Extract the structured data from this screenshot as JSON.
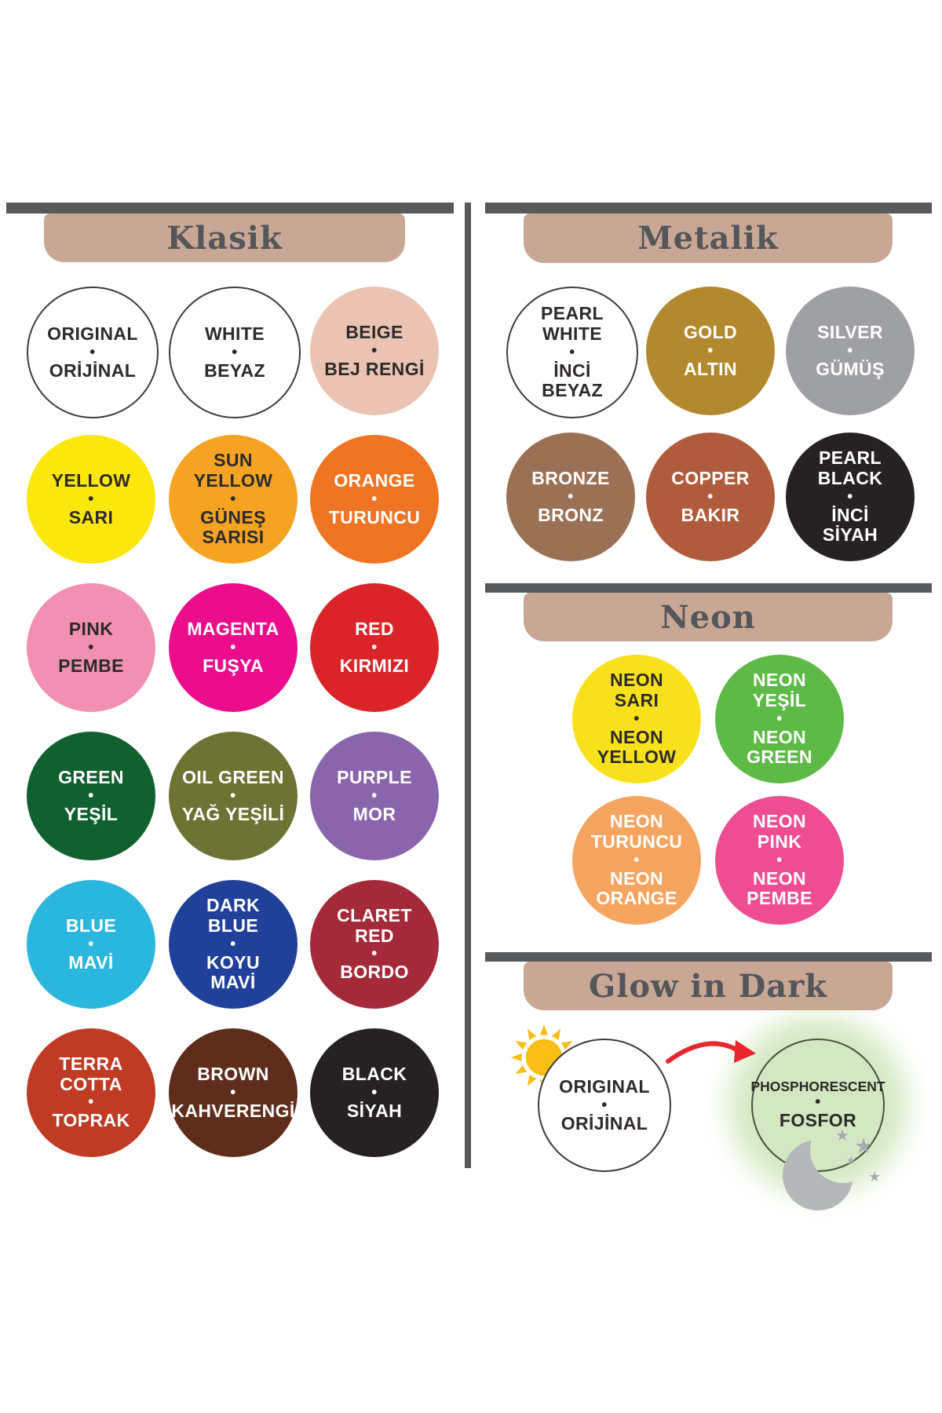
{
  "theme": {
    "bar_color": "#58595b",
    "divider_color": "#58595b",
    "header_bg": "#c9a795",
    "header_text_color": "#54565a",
    "dark_text": "#2d2a28",
    "light_text": "#ffffff",
    "outline_color": "#3c3c3c",
    "sun_color": "#f9bf17",
    "arrow_color": "#e8262c",
    "moon_color": "#b5b7b9",
    "star_color": "#a9abae",
    "glow_color": "rgba(158,207,116,0.45)"
  },
  "sections": {
    "klasik": {
      "title": "Klasik",
      "circles": [
        {
          "line1": "ORIGINAL",
          "line2": "ORİJİNAL",
          "bg": "#ffffff",
          "text": "dark",
          "outline": true
        },
        {
          "line1": "WHITE",
          "line2": "BEYAZ",
          "bg": "#ffffff",
          "text": "dark",
          "outline": true
        },
        {
          "line1": "BEIGE",
          "line2": "BEJ RENGİ",
          "bg": "#eac3b2",
          "text": "dark",
          "outline": false
        },
        {
          "line1": "YELLOW",
          "line2": "SARI",
          "bg": "#fbe70c",
          "text": "dark",
          "outline": false
        },
        {
          "line1": "SUN\nYELLOW",
          "line2": "GÜNEŞ\nSARISI",
          "bg": "#f6a323",
          "text": "dark",
          "outline": false
        },
        {
          "line1": "ORANGE",
          "line2": "TURUNCU",
          "bg": "#ef7423",
          "text": "light",
          "outline": false
        },
        {
          "line1": "PINK",
          "line2": "PEMBE",
          "bg": "#f290b4",
          "text": "dark",
          "outline": false
        },
        {
          "line1": "MAGENTA",
          "line2": "FUŞYA",
          "bg": "#eb0d8c",
          "text": "light",
          "outline": false
        },
        {
          "line1": "RED",
          "line2": "KIRMIZI",
          "bg": "#da2429",
          "text": "light",
          "outline": false
        },
        {
          "line1": "GREEN",
          "line2": "YEŞİL",
          "bg": "#11602f",
          "text": "light",
          "outline": false
        },
        {
          "line1": "OIL GREEN",
          "line2": "YAĞ YEŞİLİ",
          "bg": "#6d7332",
          "text": "light",
          "outline": false
        },
        {
          "line1": "PURPLE",
          "line2": "MOR",
          "bg": "#8a64ac",
          "text": "light",
          "outline": false
        },
        {
          "line1": "BLUE",
          "line2": "MAVİ",
          "bg": "#2ab6dd",
          "text": "light",
          "outline": false
        },
        {
          "line1": "DARK\nBLUE",
          "line2": "KOYU\nMAVİ",
          "bg": "#20409a",
          "text": "light",
          "outline": false
        },
        {
          "line1": "CLARET\nRED",
          "line2": "BORDO",
          "bg": "#a42a3a",
          "text": "light",
          "outline": false
        },
        {
          "line1": "TERRA\nCOTTA",
          "line2": "TOPRAK",
          "bg": "#bf3b24",
          "text": "light",
          "outline": false
        },
        {
          "line1": "BROWN",
          "line2": "KAHVERENGİ",
          "bg": "#5e2d1c",
          "text": "light",
          "outline": false
        },
        {
          "line1": "BLACK",
          "line2": "SİYAH",
          "bg": "#262223",
          "text": "light",
          "outline": false
        }
      ]
    },
    "metalik": {
      "title": "Metalik",
      "circles": [
        {
          "line1": "PEARL\nWHITE",
          "line2": "İNCİ\nBEYAZ",
          "bg": "#ffffff",
          "text": "dark",
          "outline": true
        },
        {
          "line1": "GOLD",
          "line2": "ALTIN",
          "bg": "#b3892f",
          "text": "light",
          "outline": false
        },
        {
          "line1": "SILVER",
          "line2": "GÜMÜŞ",
          "bg": "#9ea0a3",
          "text": "light",
          "outline": false
        },
        {
          "line1": "BRONZE",
          "line2": "BRONZ",
          "bg": "#9b7155",
          "text": "light",
          "outline": false
        },
        {
          "line1": "COPPER",
          "line2": "BAKIR",
          "bg": "#b05c3c",
          "text": "light",
          "outline": false
        },
        {
          "line1": "PEARL\nBLACK",
          "line2": "İNCİ\nSİYAH",
          "bg": "#262223",
          "text": "light",
          "outline": false
        }
      ]
    },
    "neon": {
      "title": "Neon",
      "circles": [
        {
          "line1": "NEON\nSARI",
          "line2": "NEON\nYELLOW",
          "bg": "#f8e11c",
          "text": "dark",
          "outline": false
        },
        {
          "line1": "NEON\nYEŞİL",
          "line2": "NEON\nGREEN",
          "bg": "#5eba47",
          "text": "light",
          "outline": false
        },
        {
          "line1": "NEON\nTURUNCU",
          "line2": "NEON\nORANGE",
          "bg": "#f5a55f",
          "text": "light",
          "outline": false
        },
        {
          "line1": "NEON\nPINK",
          "line2": "NEON\nPEMBE",
          "bg": "#ee4d92",
          "text": "light",
          "outline": false
        }
      ]
    },
    "glow": {
      "title": "Glow in Dark",
      "circles": [
        {
          "line1": "ORIGINAL",
          "line2": "ORİJİNAL",
          "bg": "#ffffff",
          "text": "dark",
          "outline": true
        },
        {
          "line1": "PHOSPHORESCENT",
          "line2": "FOSFOR",
          "bg": "#d3e7c2",
          "text": "dark",
          "outline": false,
          "glow": true,
          "small1": true
        }
      ],
      "icons": {
        "sun": "sun-icon",
        "arrow": "curved-red-arrow-icon",
        "moon": "moon-and-stars-icon"
      }
    }
  },
  "bullet": "•"
}
